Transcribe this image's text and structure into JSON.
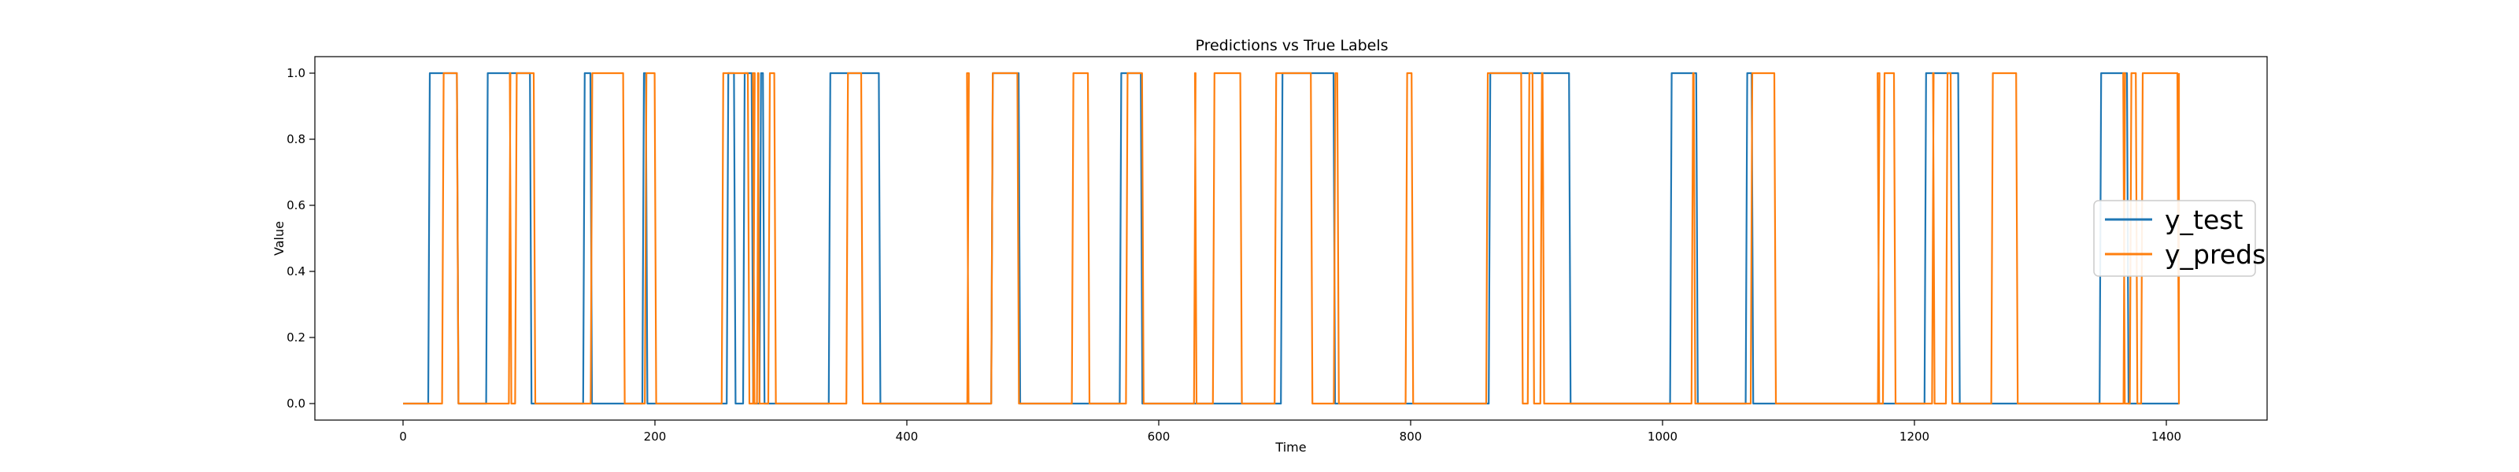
{
  "chart_data": {
    "type": "line",
    "title": "Predictions vs True Labels",
    "xlabel": "Time",
    "ylabel": "Value",
    "xlim": [
      -70,
      1480
    ],
    "ylim": [
      -0.05,
      1.05
    ],
    "xticks": [
      0,
      200,
      400,
      600,
      800,
      1000,
      1200,
      1400
    ],
    "yticks": [
      0.0,
      0.2,
      0.4,
      0.6,
      0.8,
      1.0
    ],
    "ytick_labels": [
      "0.0",
      "0.2",
      "0.4",
      "0.6",
      "0.8",
      "1.0"
    ],
    "grid": false,
    "legend_position": "center-right",
    "series": [
      {
        "name": "y_test",
        "color": "#1f77b4",
        "intervals": [
          [
            20,
            44
          ],
          [
            66,
            102
          ],
          [
            143,
            150
          ],
          [
            190,
            194
          ],
          [
            257,
            264
          ],
          [
            270,
            278
          ],
          [
            283,
            287
          ],
          [
            338,
            379
          ],
          [
            467,
            490
          ],
          [
            569,
            587
          ],
          [
            697,
            740
          ],
          [
            862,
            927
          ],
          [
            1006,
            1028
          ],
          [
            1066,
            1072
          ],
          [
            1208,
            1236
          ],
          [
            1347,
            1370
          ]
        ],
        "end": 1410
      },
      {
        "name": "y_preds",
        "color": "#ff7f0e",
        "intervals": [
          [
            31,
            44
          ],
          [
            84,
            86
          ],
          [
            89,
            105
          ],
          [
            149,
            176
          ],
          [
            192,
            201
          ],
          [
            253,
            275
          ],
          [
            278,
            279
          ],
          [
            281,
            283
          ],
          [
            290,
            296
          ],
          [
            352,
            365
          ],
          [
            448,
            449
          ],
          [
            467,
            489
          ],
          [
            531,
            545
          ],
          [
            574,
            588
          ],
          [
            628,
            630
          ],
          [
            643,
            666
          ],
          [
            692,
            722
          ],
          [
            739,
            743
          ],
          [
            796,
            802
          ],
          [
            860,
            889
          ],
          [
            893,
            898
          ],
          [
            903,
            906
          ],
          [
            1023,
            1026
          ],
          [
            1070,
            1090
          ],
          [
            1171,
            1172
          ],
          [
            1175,
            1185
          ],
          [
            1214,
            1216
          ],
          [
            1225,
            1230
          ],
          [
            1261,
            1282
          ],
          [
            1366,
            1367
          ],
          [
            1371,
            1377
          ],
          [
            1380,
            1410
          ]
        ],
        "end": 1410
      }
    ]
  }
}
